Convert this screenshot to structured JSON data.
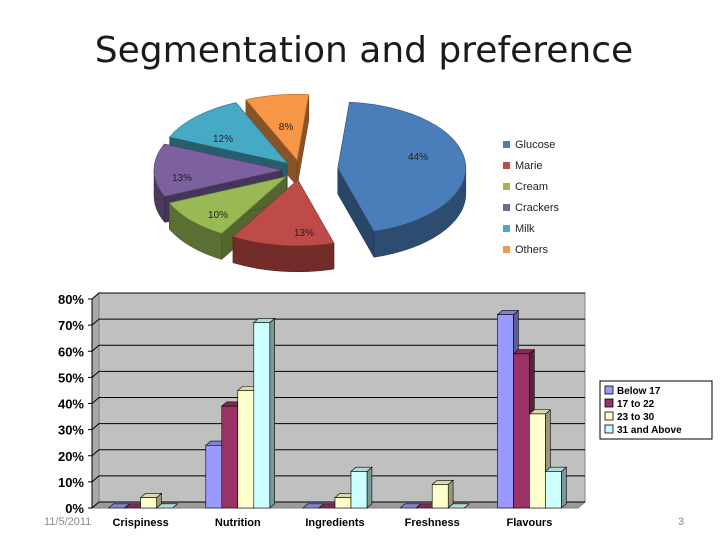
{
  "slide": {
    "title": "Segmentation and preference",
    "date": "11/5/2011",
    "number": "3"
  },
  "chart_data": [
    {
      "type": "pie",
      "title": "",
      "categories": [
        "Glucose",
        "Marie",
        "Cream",
        "Crackers",
        "Milk",
        "Others"
      ],
      "values": [
        44,
        13,
        10,
        13,
        12,
        8
      ],
      "data_labels": [
        "44%",
        "13%",
        "10%",
        "13%",
        "12%",
        "8%"
      ],
      "colors": [
        "#4a7ebb",
        "#be4b48",
        "#98b954",
        "#7d60a0",
        "#46aac5",
        "#f79646"
      ],
      "legend": "right",
      "style": "3d-exploded"
    },
    {
      "type": "bar",
      "title": "",
      "xlabel": "",
      "ylabel": "",
      "categories": [
        "Crispiness",
        "Nutrition",
        "Ingredients",
        "Freshness",
        "Flavours"
      ],
      "series": [
        {
          "name": "Below 17",
          "values": [
            0,
            24,
            0,
            0,
            74
          ],
          "color": "#9999ff"
        },
        {
          "name": "17 to 22",
          "values": [
            0,
            39,
            0,
            0,
            59
          ],
          "color": "#993366"
        },
        {
          "name": "23 to 30",
          "values": [
            4,
            45,
            4,
            9,
            36
          ],
          "color": "#ffffcc"
        },
        {
          "name": "31 and Above",
          "values": [
            0,
            71,
            14,
            0,
            14
          ],
          "color": "#ccffff"
        }
      ],
      "ylim": [
        0,
        80
      ],
      "yticks": [
        "0%",
        "10%",
        "20%",
        "30%",
        "40%",
        "50%",
        "60%",
        "70%",
        "80%"
      ],
      "legend": "right",
      "grid": true,
      "style": "3d-clustered"
    }
  ]
}
